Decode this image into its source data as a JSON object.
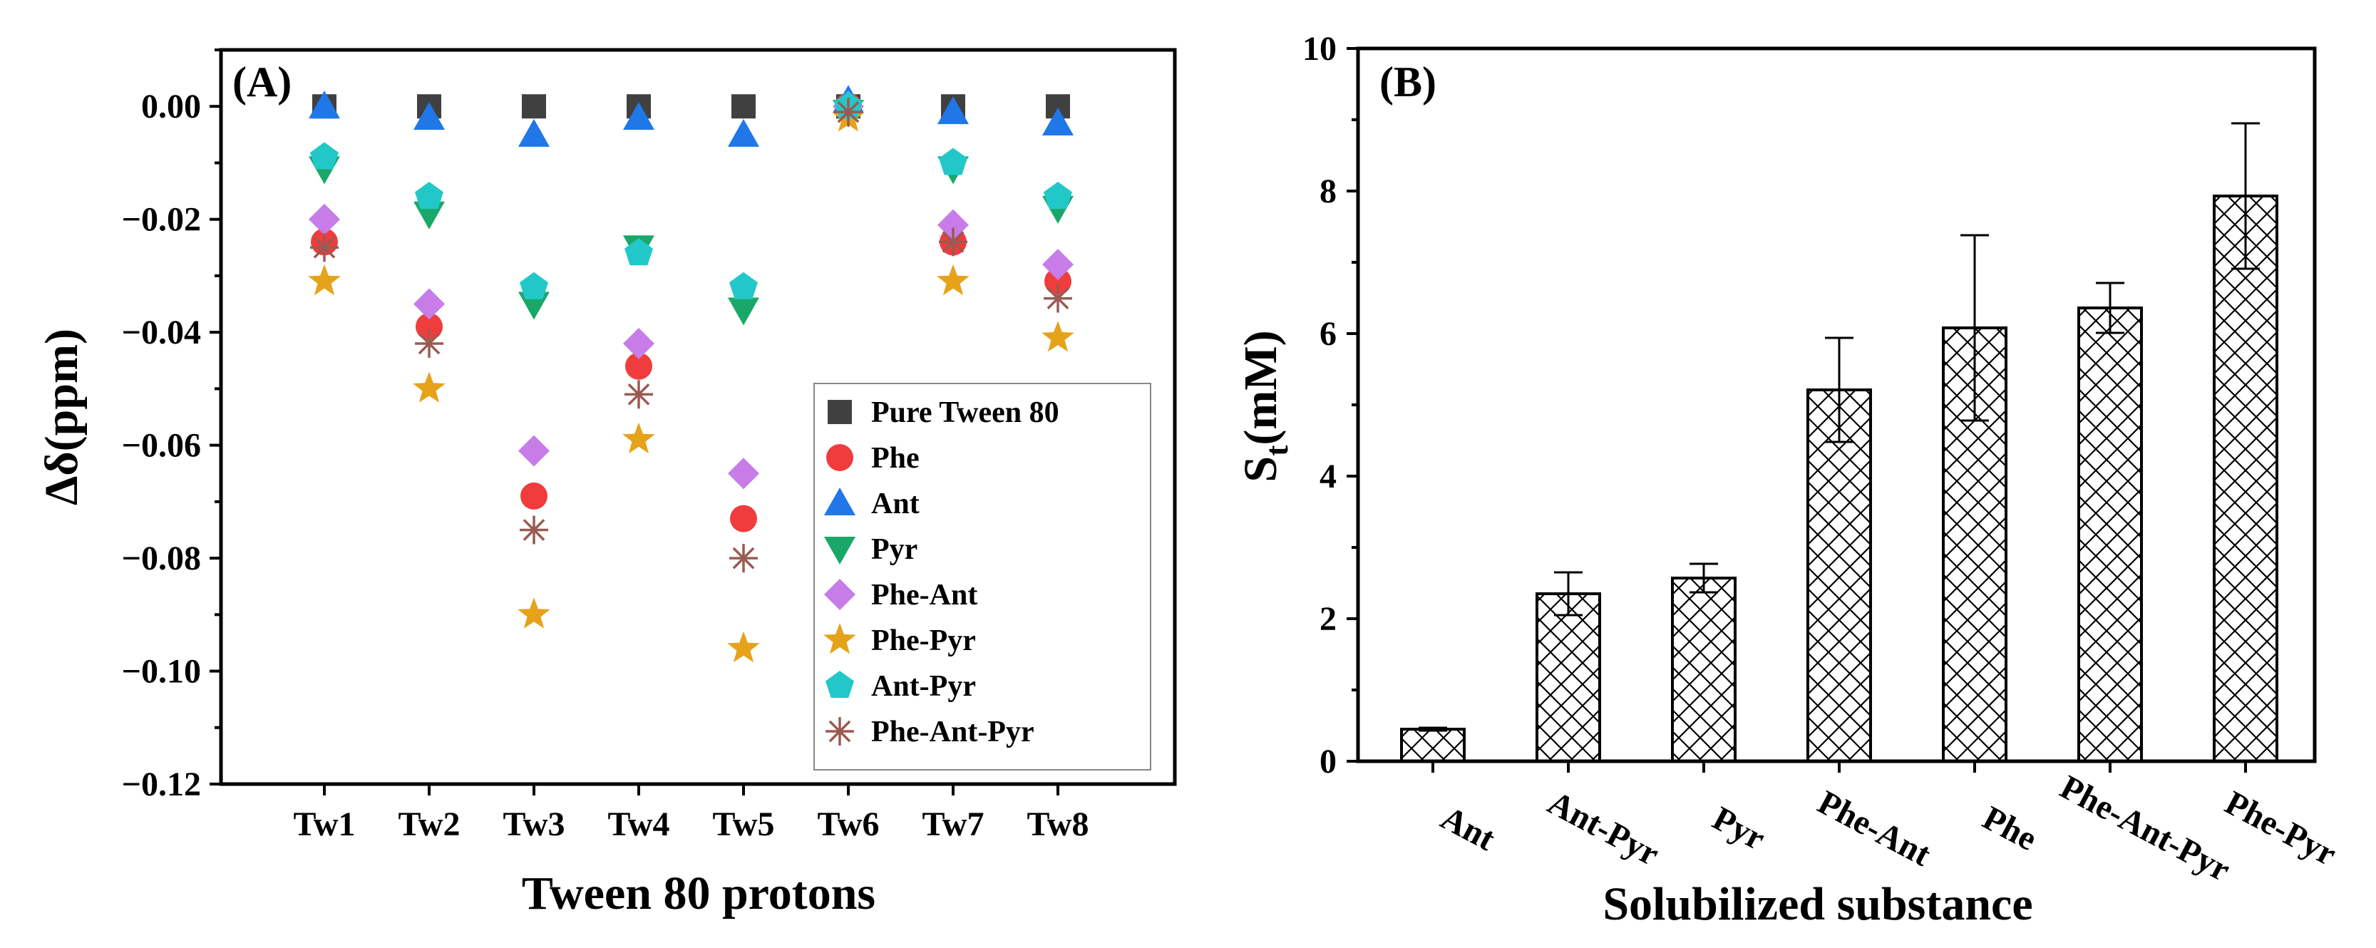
{
  "chart_data": [
    {
      "type": "scatter",
      "panel_label": "(A)",
      "title": "",
      "xlabel": "Tween 80 protons",
      "ylabel": "Δδ(ppm)",
      "categories": [
        "Tw1",
        "Tw2",
        "Tw3",
        "Tw4",
        "Tw5",
        "Tw6",
        "Tw7",
        "Tw8"
      ],
      "ylim": [
        -0.12,
        0.01
      ],
      "yticks": [
        "0.00",
        "-0.02",
        "-0.04",
        "-0.06",
        "-0.08",
        "-0.10",
        "-0.12"
      ],
      "legend_position": "bottom-right",
      "series": [
        {
          "name": "Pure Tween 80",
          "marker": "square",
          "color": "#404040",
          "values": [
            0,
            0,
            0,
            0,
            0,
            0,
            0,
            0
          ]
        },
        {
          "name": "Phe",
          "marker": "circle",
          "color": "#f03c3c",
          "values": [
            -0.024,
            -0.039,
            -0.069,
            -0.046,
            -0.073,
            0.0,
            -0.024,
            -0.031
          ]
        },
        {
          "name": "Ant",
          "marker": "triangle-up",
          "color": "#1f77e8",
          "values": [
            0.0,
            -0.002,
            -0.005,
            -0.002,
            -0.005,
            0.001,
            -0.001,
            -0.003
          ]
        },
        {
          "name": "Pyr",
          "marker": "triangle-down",
          "color": "#1aa86a",
          "values": [
            -0.011,
            -0.019,
            -0.035,
            -0.025,
            -0.036,
            -0.001,
            -0.011,
            -0.018
          ]
        },
        {
          "name": "Phe-Ant",
          "marker": "diamond",
          "color": "#c77ce8",
          "values": [
            -0.02,
            -0.035,
            -0.061,
            -0.042,
            -0.065,
            0.0,
            -0.021,
            -0.028
          ]
        },
        {
          "name": "Phe-Pyr",
          "marker": "star",
          "color": "#e6a21a",
          "values": [
            -0.031,
            -0.05,
            -0.09,
            -0.059,
            -0.096,
            -0.002,
            -0.031,
            -0.041
          ]
        },
        {
          "name": "Ant-Pyr",
          "marker": "pentagon",
          "color": "#22c8c8",
          "values": [
            -0.009,
            -0.016,
            -0.032,
            -0.026,
            -0.032,
            0.0,
            -0.01,
            -0.016
          ]
        },
        {
          "name": "Phe-Ant-Pyr",
          "marker": "asterisk",
          "color": "#9a5a52",
          "values": [
            -0.025,
            -0.042,
            -0.075,
            -0.051,
            -0.08,
            -0.001,
            -0.024,
            -0.034
          ]
        }
      ]
    },
    {
      "type": "bar",
      "panel_label": "(B)",
      "title": "",
      "xlabel": "Solubilized substance",
      "ylabel": "St(mM)",
      "ylabel_main": "S",
      "ylabel_sub": "t",
      "ylabel_rest": "(mM)",
      "categories": [
        "Ant",
        "Ant-Pyr",
        "Pyr",
        "Phe-Ant",
        "Phe",
        "Phe-Ant-Pyr",
        "Phe-Pyr"
      ],
      "values": [
        0.45,
        2.35,
        2.57,
        5.21,
        6.08,
        6.36,
        7.93
      ],
      "errors": [
        0.02,
        0.3,
        0.2,
        0.73,
        1.3,
        0.35,
        1.02
      ],
      "ylim": [
        0,
        10
      ],
      "yticks": [
        "0",
        "2",
        "4",
        "6",
        "8",
        "10"
      ],
      "fill_pattern": "crosshatch"
    }
  ]
}
